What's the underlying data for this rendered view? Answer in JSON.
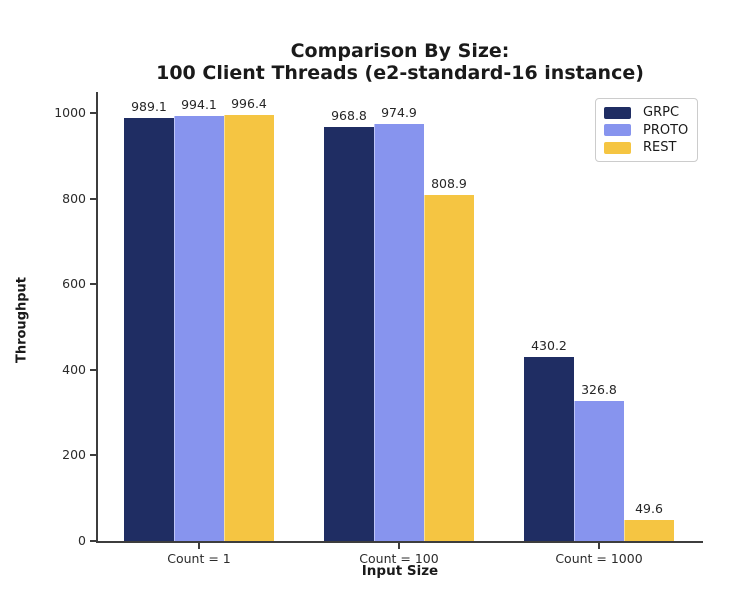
{
  "chart_data": {
    "type": "bar",
    "title_lines": [
      "Comparison By Size:",
      "100 Client Threads (e2-standard-16 instance)"
    ],
    "categories": [
      "Count = 1",
      "Count = 100",
      "Count = 1000"
    ],
    "series": [
      {
        "name": "GRPC",
        "color": "#1f2d63",
        "values": [
          989.1,
          968.8,
          430.2
        ]
      },
      {
        "name": "PROTO",
        "color": "#8794ee",
        "values": [
          994.1,
          974.9,
          326.8
        ]
      },
      {
        "name": "REST",
        "color": "#f5c542",
        "values": [
          996.4,
          808.9,
          49.6
        ]
      }
    ],
    "xlabel": "Input Size",
    "ylabel": "Throughput",
    "yticks": [
      0,
      200,
      400,
      600,
      800,
      1000
    ],
    "ylim": [
      0,
      1050
    ],
    "grid": false,
    "legend_position": "upper right",
    "value_labels_shown": true
  }
}
